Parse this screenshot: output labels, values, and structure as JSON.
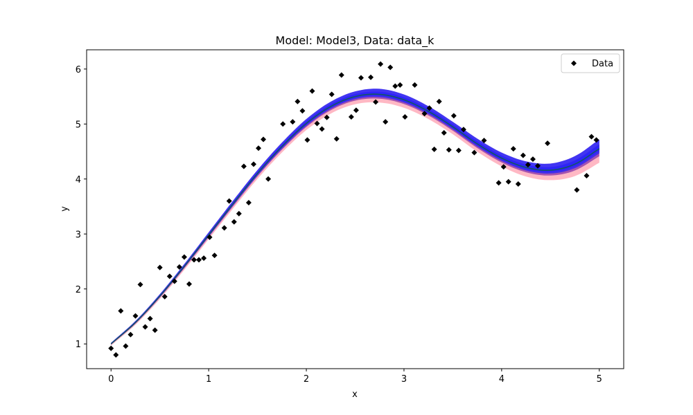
{
  "chart_data": {
    "type": "scatter",
    "title": "Model: Model3, Data: data_k",
    "xlabel": "x",
    "ylabel": "y",
    "xlim": [
      -0.25,
      5.25
    ],
    "ylim": [
      0.55,
      6.35
    ],
    "xticks": [
      0,
      1,
      2,
      3,
      4,
      5
    ],
    "yticks": [
      1,
      2,
      3,
      4,
      5,
      6
    ],
    "grid": false,
    "legend": {
      "position": "top-right",
      "entries": [
        "Data"
      ]
    },
    "colors": {
      "data": "#000000",
      "band_outer_red": "#ff3355",
      "band_blue": "#2020ff",
      "band_purple": "#5a00a0",
      "center_line": "#0f5e4a"
    },
    "series": [
      {
        "name": "Data",
        "marker": "diamond",
        "points": [
          [
            0.0,
            0.92
          ],
          [
            0.05,
            0.8
          ],
          [
            0.1,
            1.6
          ],
          [
            0.15,
            0.96
          ],
          [
            0.2,
            1.17
          ],
          [
            0.25,
            1.51
          ],
          [
            0.3,
            2.08
          ],
          [
            0.35,
            1.31
          ],
          [
            0.4,
            1.46
          ],
          [
            0.45,
            1.25
          ],
          [
            0.5,
            2.39
          ],
          [
            0.55,
            1.86
          ],
          [
            0.6,
            2.23
          ],
          [
            0.65,
            2.14
          ],
          [
            0.7,
            2.4
          ],
          [
            0.75,
            2.58
          ],
          [
            0.8,
            2.09
          ],
          [
            0.85,
            2.53
          ],
          [
            0.9,
            2.53
          ],
          [
            0.95,
            2.56
          ],
          [
            1.01,
            2.94
          ],
          [
            1.06,
            2.61
          ],
          [
            1.16,
            3.11
          ],
          [
            1.21,
            3.6
          ],
          [
            1.26,
            3.22
          ],
          [
            1.31,
            3.37
          ],
          [
            1.36,
            4.23
          ],
          [
            1.41,
            3.57
          ],
          [
            1.46,
            4.27
          ],
          [
            1.51,
            4.56
          ],
          [
            1.56,
            4.72
          ],
          [
            1.61,
            4.0
          ],
          [
            1.76,
            5.0
          ],
          [
            1.86,
            5.04
          ],
          [
            1.91,
            5.41
          ],
          [
            1.96,
            5.24
          ],
          [
            2.01,
            4.71
          ],
          [
            2.06,
            5.6
          ],
          [
            2.11,
            5.01
          ],
          [
            2.16,
            4.91
          ],
          [
            2.21,
            5.12
          ],
          [
            2.26,
            5.54
          ],
          [
            2.31,
            4.73
          ],
          [
            2.36,
            5.89
          ],
          [
            2.46,
            5.13
          ],
          [
            2.51,
            5.25
          ],
          [
            2.56,
            5.84
          ],
          [
            2.66,
            5.85
          ],
          [
            2.71,
            5.4
          ],
          [
            2.76,
            6.09
          ],
          [
            2.81,
            5.04
          ],
          [
            2.86,
            6.03
          ],
          [
            2.91,
            5.69
          ],
          [
            2.96,
            5.71
          ],
          [
            3.01,
            5.13
          ],
          [
            3.11,
            5.71
          ],
          [
            3.21,
            5.19
          ],
          [
            3.26,
            5.29
          ],
          [
            3.31,
            4.54
          ],
          [
            3.36,
            5.41
          ],
          [
            3.41,
            4.84
          ],
          [
            3.46,
            4.53
          ],
          [
            3.51,
            5.15
          ],
          [
            3.56,
            4.52
          ],
          [
            3.61,
            4.9
          ],
          [
            3.72,
            4.48
          ],
          [
            3.82,
            4.7
          ],
          [
            3.97,
            3.93
          ],
          [
            4.02,
            4.22
          ],
          [
            4.07,
            3.95
          ],
          [
            4.12,
            4.55
          ],
          [
            4.17,
            3.91
          ],
          [
            4.22,
            4.43
          ],
          [
            4.27,
            4.26
          ],
          [
            4.32,
            4.36
          ],
          [
            4.37,
            4.24
          ],
          [
            4.47,
            4.65
          ],
          [
            4.77,
            3.8
          ],
          [
            4.87,
            4.06
          ],
          [
            4.92,
            4.77
          ],
          [
            4.97,
            4.71
          ]
        ]
      },
      {
        "kind": "model-band",
        "center": [
          [
            0.0,
            1.0
          ],
          [
            0.25,
            1.39
          ],
          [
            0.5,
            1.87
          ],
          [
            0.75,
            2.41
          ],
          [
            1.0,
            2.98
          ],
          [
            1.25,
            3.55
          ],
          [
            1.5,
            4.1
          ],
          [
            1.75,
            4.59
          ],
          [
            2.0,
            5.01
          ],
          [
            2.25,
            5.32
          ],
          [
            2.5,
            5.5
          ],
          [
            2.75,
            5.54
          ],
          [
            3.0,
            5.44
          ],
          [
            3.25,
            5.23
          ],
          [
            3.5,
            4.95
          ],
          [
            3.75,
            4.64
          ],
          [
            4.0,
            4.38
          ],
          [
            4.25,
            4.21
          ],
          [
            4.5,
            4.16
          ],
          [
            4.75,
            4.27
          ],
          [
            5.0,
            4.55
          ]
        ],
        "spread": [
          [
            0.0,
            0.02
          ],
          [
            1.0,
            0.05
          ],
          [
            2.0,
            0.08
          ],
          [
            2.75,
            0.1
          ],
          [
            3.5,
            0.09
          ],
          [
            4.0,
            0.1
          ],
          [
            4.5,
            0.12
          ],
          [
            5.0,
            0.17
          ]
        ]
      }
    ]
  }
}
